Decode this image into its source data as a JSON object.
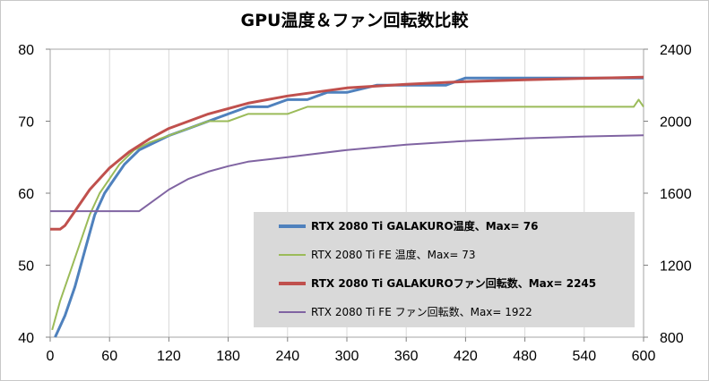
{
  "chart_data": {
    "type": "line",
    "title": "GPU温度＆ファン回転数比較",
    "x": {
      "ticks": [
        0,
        60,
        120,
        180,
        240,
        300,
        360,
        420,
        480,
        540,
        600
      ],
      "range": [
        0,
        600
      ]
    },
    "y_left": {
      "ticks": [
        40,
        50,
        60,
        70,
        80
      ],
      "range": [
        40,
        80
      ]
    },
    "y_right": {
      "ticks": [
        800,
        1200,
        1600,
        2000,
        2400
      ],
      "range": [
        800,
        2400
      ]
    },
    "grid": "vertical-only",
    "legend_position": "center-right",
    "series": [
      {
        "name": "RTX 2080 Ti GALAKURO温度、Max= 76",
        "axis": "left",
        "color": "#4f81bd",
        "bold": true,
        "points": [
          [
            5,
            40
          ],
          [
            15,
            43
          ],
          [
            25,
            47
          ],
          [
            35,
            52
          ],
          [
            45,
            57
          ],
          [
            55,
            60
          ],
          [
            65,
            62
          ],
          [
            75,
            64
          ],
          [
            90,
            66
          ],
          [
            105,
            67
          ],
          [
            120,
            68
          ],
          [
            140,
            69
          ],
          [
            160,
            70
          ],
          [
            180,
            71
          ],
          [
            200,
            72
          ],
          [
            220,
            72
          ],
          [
            240,
            73
          ],
          [
            260,
            73
          ],
          [
            280,
            74
          ],
          [
            300,
            74
          ],
          [
            330,
            75
          ],
          [
            360,
            75
          ],
          [
            400,
            75
          ],
          [
            420,
            76
          ],
          [
            500,
            76
          ],
          [
            600,
            76
          ]
        ]
      },
      {
        "name": "RTX 2080 Ti FE 温度、Max= 73",
        "axis": "left",
        "color": "#9bbb59",
        "bold": false,
        "points": [
          [
            2,
            41
          ],
          [
            10,
            45
          ],
          [
            20,
            49
          ],
          [
            30,
            53
          ],
          [
            40,
            57
          ],
          [
            50,
            60
          ],
          [
            60,
            62
          ],
          [
            70,
            64
          ],
          [
            85,
            66
          ],
          [
            100,
            67
          ],
          [
            120,
            68
          ],
          [
            140,
            69
          ],
          [
            160,
            70
          ],
          [
            180,
            70
          ],
          [
            200,
            71
          ],
          [
            240,
            71
          ],
          [
            260,
            72
          ],
          [
            300,
            72
          ],
          [
            400,
            72
          ],
          [
            590,
            72
          ],
          [
            595,
            73
          ],
          [
            600,
            72
          ]
        ]
      },
      {
        "name": "RTX 2080 Ti FE ファン回転数、Max= 1922",
        "axis": "right",
        "color": "#8064a2",
        "bold": false,
        "points": [
          [
            0,
            1500
          ],
          [
            90,
            1500
          ],
          [
            100,
            1540
          ],
          [
            120,
            1620
          ],
          [
            140,
            1680
          ],
          [
            160,
            1720
          ],
          [
            180,
            1750
          ],
          [
            200,
            1775
          ],
          [
            240,
            1800
          ],
          [
            300,
            1840
          ],
          [
            360,
            1870
          ],
          [
            420,
            1890
          ],
          [
            480,
            1905
          ],
          [
            540,
            1915
          ],
          [
            600,
            1922
          ]
        ]
      },
      {
        "name": "RTX 2080 Ti GALAKURO ファン回転数、Max= 2245",
        "axis": "right",
        "color": "#c0504d",
        "bold": true,
        "points": [
          [
            0,
            1400
          ],
          [
            10,
            1400
          ],
          [
            15,
            1420
          ],
          [
            25,
            1500
          ],
          [
            40,
            1620
          ],
          [
            60,
            1740
          ],
          [
            80,
            1830
          ],
          [
            100,
            1900
          ],
          [
            120,
            1960
          ],
          [
            140,
            2000
          ],
          [
            160,
            2040
          ],
          [
            180,
            2070
          ],
          [
            200,
            2100
          ],
          [
            240,
            2140
          ],
          [
            280,
            2170
          ],
          [
            300,
            2185
          ],
          [
            360,
            2205
          ],
          [
            420,
            2220
          ],
          [
            480,
            2230
          ],
          [
            540,
            2238
          ],
          [
            600,
            2245
          ]
        ]
      }
    ]
  },
  "legend": [
    {
      "label": "RTX 2080 Ti GALAKURO温度、Max= 76",
      "color": "#4f81bd",
      "bold": true
    },
    {
      "label": "RTX 2080 Ti FE 温度、Max= 73",
      "color": "#9bbb59",
      "bold": false
    },
    {
      "label": "RTX 2080 Ti GALAKUROファン回転数、Max= 2245",
      "color": "#c0504d",
      "bold": true
    },
    {
      "label": "RTX 2080 Ti FE ファン回転数、Max= 1922",
      "color": "#8064a2",
      "bold": false
    }
  ]
}
